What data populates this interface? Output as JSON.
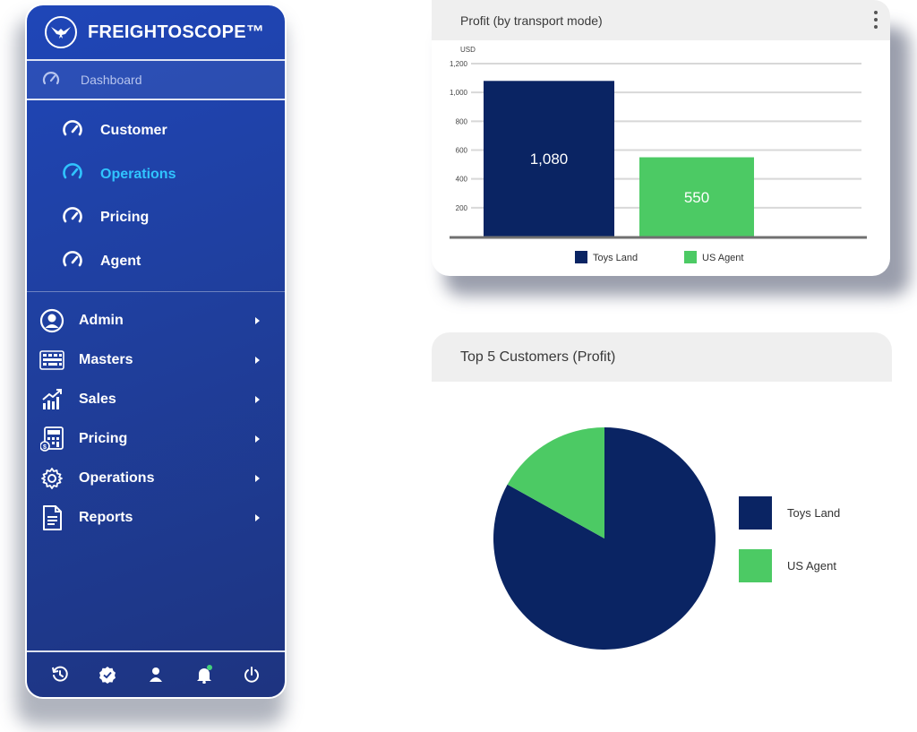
{
  "app": {
    "brand": "FREIGHTOSCOPE™",
    "accent": "#30c4ff"
  },
  "sidebar": {
    "dashboard_label": "Dashboard",
    "sub_items": [
      {
        "label": "Customer",
        "icon": "gauge-icon",
        "active": false
      },
      {
        "label": "Operations",
        "icon": "gauge-icon",
        "active": true
      },
      {
        "label": "Pricing",
        "icon": "gauge-icon",
        "active": false
      },
      {
        "label": "Agent",
        "icon": "gauge-icon",
        "active": false
      }
    ],
    "main_items": [
      {
        "label": "Admin",
        "icon": "user-circle-icon"
      },
      {
        "label": "Masters",
        "icon": "keyboard-icon"
      },
      {
        "label": "Sales",
        "icon": "growth-chart-icon"
      },
      {
        "label": "Pricing",
        "icon": "calculator-icon"
      },
      {
        "label": "Operations",
        "icon": "gear-icon"
      },
      {
        "label": "Reports",
        "icon": "document-icon"
      }
    ],
    "footer_icons": [
      "history-icon",
      "verified-icon",
      "user-icon",
      "bell-icon",
      "power-icon"
    ]
  },
  "profit_card": {
    "title": "Profit (by transport mode)"
  },
  "customers_card": {
    "title": "Top 5 Customers (Profit)"
  },
  "chart_data": [
    {
      "type": "bar",
      "title": "Profit (by transport mode)",
      "ylabel": "USD",
      "ylim": [
        0,
        1200
      ],
      "yticks": [
        "200",
        "400",
        "600",
        "800",
        "1,000",
        "1,200"
      ],
      "grid": true,
      "legend": "bottom",
      "series": [
        {
          "name": "Toys Land",
          "value": 1080,
          "label": "1,080",
          "color": "#0a2463"
        },
        {
          "name": "US Agent",
          "value": 550,
          "label": "550",
          "color": "#4cca64"
        }
      ]
    },
    {
      "type": "pie",
      "title": "Top 5 Customers (Profit)",
      "legend": "right",
      "series": [
        {
          "name": "Toys Land",
          "value": 1080,
          "color": "#0a2463"
        },
        {
          "name": "US Agent",
          "value": 220,
          "color": "#4cca64"
        }
      ]
    }
  ]
}
